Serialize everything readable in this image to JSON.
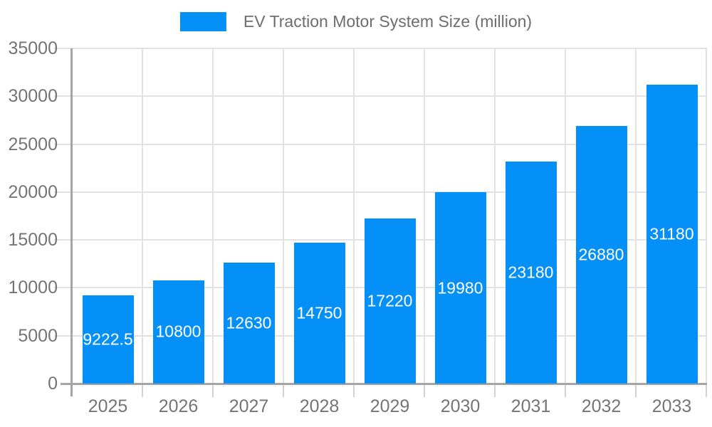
{
  "legend": {
    "label": "EV Traction Motor System Size (million)"
  },
  "chart_data": {
    "type": "bar",
    "title": "",
    "xlabel": "",
    "ylabel": "",
    "categories": [
      "2025",
      "2026",
      "2027",
      "2028",
      "2029",
      "2030",
      "2031",
      "2032",
      "2033"
    ],
    "values": [
      9222.5,
      10800,
      12630,
      14750,
      17220,
      19980,
      23180,
      26880,
      31180
    ],
    "series": [
      {
        "name": "EV Traction Motor System Size (million)",
        "values": [
          9222.5,
          10800,
          12630,
          14750,
          17220,
          19980,
          23180,
          26880,
          31180
        ]
      }
    ],
    "value_labels": [
      "9222.5",
      "10800",
      "12630",
      "14750",
      "17220",
      "19980",
      "23180",
      "26880",
      "31180"
    ],
    "ylim": [
      0,
      35000
    ],
    "y_ticks": [
      0,
      5000,
      10000,
      15000,
      20000,
      25000,
      30000,
      35000
    ],
    "grid": true,
    "legend_position": "top"
  },
  "colors": {
    "bar": "#0590f8",
    "value_label": "#ffffff",
    "grid": "#e2e2e2",
    "tick": "#d2d2d2",
    "axis": "#a5a5a5",
    "axis_label": "#757575",
    "legend_text": "#6e6e6e",
    "background": "#ffffff"
  }
}
